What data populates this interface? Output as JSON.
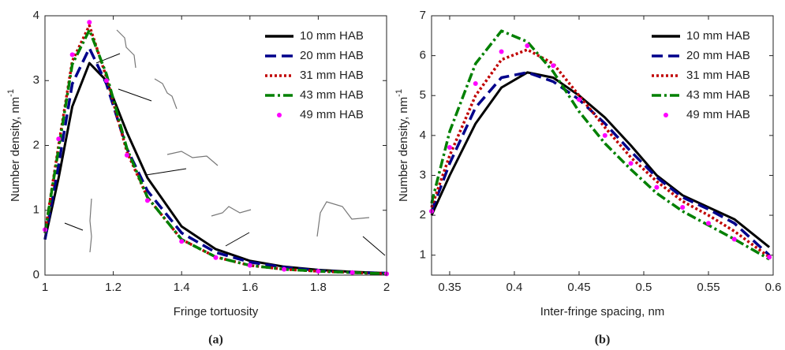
{
  "chart_data": [
    {
      "type": "line",
      "caption": "(a)",
      "xlabel": "Fringe tortuosity",
      "ylabel": "Number density, nm",
      "ylabel_superscript": "-1",
      "xlim": [
        1,
        2
      ],
      "xticks": [
        1,
        1.2,
        1.4,
        1.6,
        1.8,
        2
      ],
      "ylim": [
        0,
        4
      ],
      "yticks": [
        0,
        1,
        2,
        3,
        4
      ],
      "legend": "upper right",
      "x": [
        1,
        1.04,
        1.08,
        1.13,
        1.18,
        1.24,
        1.3,
        1.4,
        1.5,
        1.6,
        1.7,
        1.8,
        1.9,
        2
      ],
      "series": [
        {
          "name": "10 mm HAB",
          "color": "#000000",
          "style": "solid",
          "values": [
            0.55,
            1.5,
            2.6,
            3.27,
            3.0,
            2.2,
            1.5,
            0.75,
            0.4,
            0.22,
            0.13,
            0.08,
            0.05,
            0.03
          ]
        },
        {
          "name": "20 mm HAB",
          "color": "#00008b",
          "style": "dashed",
          "values": [
            0.55,
            1.7,
            2.95,
            3.5,
            2.95,
            1.95,
            1.3,
            0.65,
            0.35,
            0.2,
            0.12,
            0.07,
            0.04,
            0.03
          ]
        },
        {
          "name": "31 mm HAB",
          "color": "#c00000",
          "style": "dotted",
          "values": [
            0.65,
            2.0,
            3.3,
            3.85,
            3.05,
            1.9,
            1.2,
            0.55,
            0.28,
            0.15,
            0.09,
            0.06,
            0.04,
            0.02
          ]
        },
        {
          "name": "43 mm HAB",
          "color": "#008000",
          "style": "dashdot",
          "values": [
            0.65,
            1.95,
            3.25,
            3.78,
            3.1,
            1.95,
            1.2,
            0.55,
            0.28,
            0.15,
            0.09,
            0.06,
            0.04,
            0.02
          ]
        },
        {
          "name": "49 mm HAB",
          "color": "#ff00ff",
          "style": "markers",
          "values": [
            0.7,
            2.1,
            3.4,
            3.9,
            3.0,
            1.85,
            1.15,
            0.52,
            0.27,
            0.15,
            0.09,
            0.06,
            0.04,
            0.02
          ]
        }
      ]
    },
    {
      "type": "line",
      "caption": "(b)",
      "xlabel": "Inter-fringe spacing, nm",
      "ylabel": "Number density, nm",
      "ylabel_superscript": "-1",
      "xlim": [
        0.336,
        0.6
      ],
      "xticks": [
        0.35,
        0.4,
        0.45,
        0.5,
        0.55,
        0.6
      ],
      "ylim": [
        0.5,
        7
      ],
      "yticks": [
        1,
        2,
        3,
        4,
        5,
        6,
        7
      ],
      "legend": "upper right",
      "x": [
        0.336,
        0.35,
        0.37,
        0.39,
        0.41,
        0.43,
        0.45,
        0.47,
        0.49,
        0.51,
        0.53,
        0.55,
        0.57,
        0.597
      ],
      "series": [
        {
          "name": "10 mm HAB",
          "color": "#000000",
          "style": "solid",
          "values": [
            2.0,
            3.0,
            4.3,
            5.2,
            5.58,
            5.45,
            5.0,
            4.45,
            3.75,
            3.0,
            2.5,
            2.2,
            1.9,
            1.2
          ]
        },
        {
          "name": "20 mm HAB",
          "color": "#00008b",
          "style": "dashed",
          "values": [
            2.1,
            3.3,
            4.7,
            5.45,
            5.58,
            5.35,
            4.9,
            4.3,
            3.6,
            2.95,
            2.45,
            2.15,
            1.8,
            1.0
          ]
        },
        {
          "name": "31 mm HAB",
          "color": "#c00000",
          "style": "dotted",
          "values": [
            2.2,
            3.5,
            5.0,
            5.9,
            6.15,
            5.8,
            5.0,
            4.2,
            3.45,
            2.85,
            2.35,
            2.0,
            1.6,
            0.95
          ]
        },
        {
          "name": "43 mm HAB",
          "color": "#008000",
          "style": "dashdot",
          "values": [
            2.3,
            4.1,
            5.8,
            6.62,
            6.35,
            5.6,
            4.6,
            3.8,
            3.15,
            2.55,
            2.1,
            1.75,
            1.4,
            0.9
          ]
        },
        {
          "name": "49 mm HAB",
          "color": "#ff00ff",
          "style": "markers",
          "values": [
            2.1,
            3.7,
            5.3,
            6.1,
            6.25,
            5.75,
            4.9,
            4.0,
            3.3,
            2.7,
            2.2,
            1.8,
            1.4,
            0.95
          ]
        }
      ]
    }
  ]
}
